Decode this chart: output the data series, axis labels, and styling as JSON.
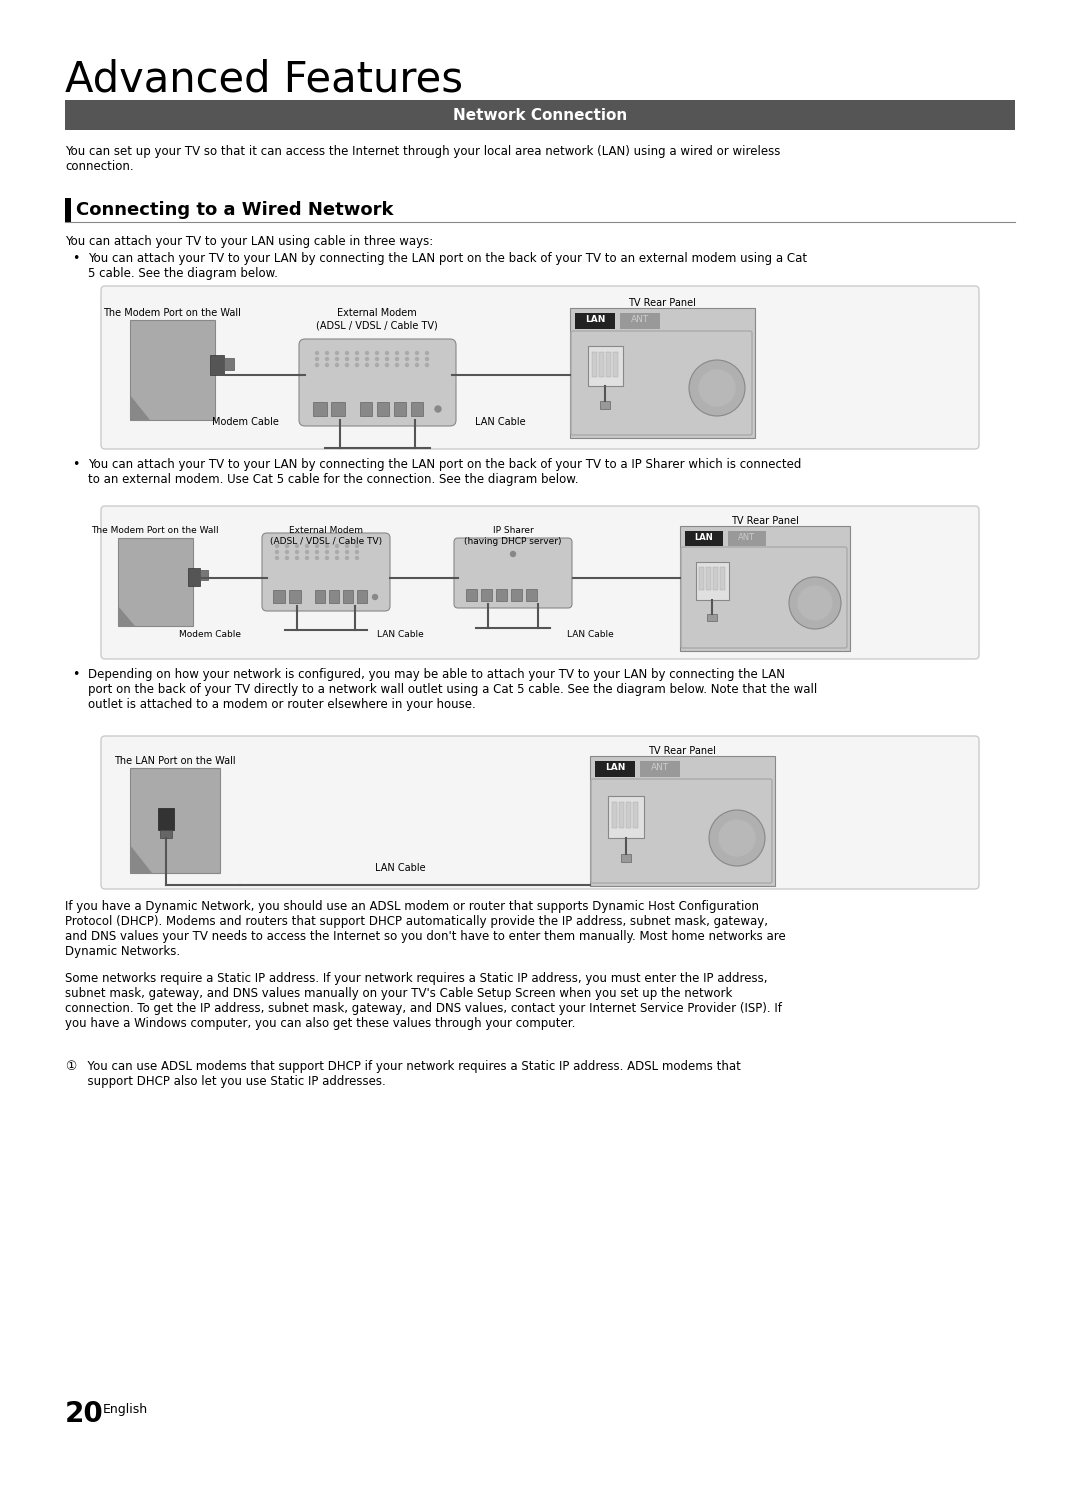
{
  "title": "Advanced Features",
  "section_header": "Network Connection",
  "section_header_bg": "#555555",
  "section_header_color": "#ffffff",
  "subsection_title": "Connecting to a Wired Network",
  "intro_text": "You can set up your TV so that it can access the Internet through your local area network (LAN) using a wired or wireless\nconnection.",
  "ways_text": "You can attach your TV to your LAN using cable in three ways:",
  "bullet1_text": "You can attach your TV to your LAN by connecting the LAN port on the back of your TV to an external modem using a Cat\n5 cable. See the diagram below.",
  "bullet2_text": "You can attach your TV to your LAN by connecting the LAN port on the back of your TV to a IP Sharer which is connected\nto an external modem. Use Cat 5 cable for the connection. See the diagram below.",
  "bullet3_text": "Depending on how your network is configured, you may be able to attach your TV to your LAN by connecting the LAN\nport on the back of your TV directly to a network wall outlet using a Cat 5 cable. See the diagram below. Note that the wall\noutlet is attached to a modem or router elsewhere in your house.",
  "footer_para1": "If you have a Dynamic Network, you should use an ADSL modem or router that supports Dynamic Host Configuration\nProtocol (DHCP). Modems and routers that support DHCP automatically provide the IP address, subnet mask, gateway,\nand DNS values your TV needs to access the Internet so you don't have to enter them manually. Most home networks are\nDynamic Networks.",
  "footer_para2": "Some networks require a Static IP address. If your network requires a Static IP address, you must enter the IP address,\nsubnet mask, gateway, and DNS values manually on your TV's Cable Setup Screen when you set up the network\nconnection. To get the IP address, subnet mask, gateway, and DNS values, contact your Internet Service Provider (ISP). If\nyou have a Windows computer, you can also get these values through your computer.",
  "footer_note": "  You can use ADSL modems that support DHCP if your network requires a Static IP address. ADSL modems that\n  support DHCP also let you use Static IP addresses.",
  "page_number": "20",
  "page_lang": "English",
  "bg_color": "#ffffff",
  "wall_color": "#aaaaaa",
  "device_light": "#c8c8c8",
  "device_mid": "#b0b0b0",
  "device_dark": "#888888",
  "lan_bg": "#222222",
  "ant_bg": "#999999",
  "diagram_bg": "#f5f5f5",
  "diagram_border": "#cccccc"
}
